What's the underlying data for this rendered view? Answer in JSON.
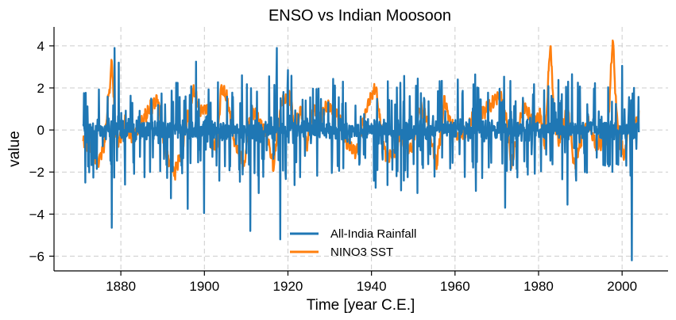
{
  "chart_data": {
    "type": "line",
    "title": "ENSO vs Indian Moosoon",
    "xlabel": "Time [year C.E.]",
    "ylabel": "value",
    "xlim": [
      1864,
      2011
    ],
    "ylim": [
      -6.7,
      4.9
    ],
    "x_ticks": [
      1880,
      1900,
      1920,
      1940,
      1960,
      1980,
      2000
    ],
    "y_ticks": [
      4,
      2,
      0,
      -2,
      -4,
      -6
    ],
    "x_tick_labels": [
      "1880",
      "1900",
      "1920",
      "1940",
      "1960",
      "1980",
      "2000"
    ],
    "y_tick_labels": [
      "4",
      "2",
      "0",
      "−2",
      "−4",
      "−6"
    ],
    "grid": true,
    "legend_position": "lower-center",
    "series": [
      {
        "name": "All-India Rainfall",
        "color": "#1f77b4",
        "style": "monthly-spiky",
        "x_range": [
          1871,
          2004
        ],
        "points": [
          [
            1871.2,
            1.75
          ],
          [
            1871.5,
            -2.5
          ],
          [
            1877.8,
            -4.65
          ],
          [
            1878.5,
            3.9
          ],
          [
            1879.5,
            3.2
          ],
          [
            1881,
            -2.6
          ],
          [
            1887,
            -2.0
          ],
          [
            1892,
            -3.25
          ],
          [
            1896,
            -3.75
          ],
          [
            1898,
            3.25
          ],
          [
            1899.9,
            -3.95
          ],
          [
            1909,
            2.6
          ],
          [
            1911,
            -4.8
          ],
          [
            1913,
            -3.0
          ],
          [
            1917.3,
            3.9
          ],
          [
            1918.2,
            -5.2
          ],
          [
            1920,
            2.85
          ],
          [
            1941,
            -2.75
          ],
          [
            1951,
            -3.0
          ],
          [
            1965,
            -2.9
          ],
          [
            1972,
            -3.7
          ],
          [
            1986.9,
            -3.55
          ],
          [
            1988,
            2.65
          ],
          [
            2000,
            3.05
          ],
          [
            2001,
            -1.7
          ],
          [
            2002.3,
            -6.2
          ],
          [
            2002.8,
            2.0
          ],
          [
            2003.4,
            -0.9
          ]
        ]
      },
      {
        "name": "NINO3 SST",
        "color": "#ff7f0e",
        "style": "smooth",
        "x_range": [
          1871,
          2004
        ],
        "points": [
          [
            1871.0,
            -0.45
          ],
          [
            1873.0,
            -0.9
          ],
          [
            1874.5,
            -1.55
          ],
          [
            1876.0,
            -0.7
          ],
          [
            1877.4,
            2.3
          ],
          [
            1877.9,
            3.3
          ],
          [
            1878.6,
            0.0
          ],
          [
            1879.6,
            -0.6
          ],
          [
            1881.0,
            0.4
          ],
          [
            1882.5,
            -0.4
          ],
          [
            1884.0,
            0.0
          ],
          [
            1886.0,
            0.7
          ],
          [
            1888.8,
            1.5
          ],
          [
            1890.6,
            -1.0
          ],
          [
            1892.8,
            -2.1
          ],
          [
            1894.5,
            -1.0
          ],
          [
            1897.4,
            1.9
          ],
          [
            1899.0,
            0.9
          ],
          [
            1900.5,
            1.1
          ],
          [
            1901.5,
            -0.4
          ],
          [
            1903.0,
            -0.9
          ],
          [
            1904.0,
            2.0
          ],
          [
            1905.5,
            1.5
          ],
          [
            1907.0,
            -0.4
          ],
          [
            1909.5,
            -1.75
          ],
          [
            1911.3,
            1.05
          ],
          [
            1913.5,
            0.2
          ],
          [
            1915.0,
            -0.2
          ],
          [
            1916.5,
            -1.8
          ],
          [
            1918.5,
            1.4
          ],
          [
            1920.5,
            1.5
          ],
          [
            1921.5,
            0.2
          ],
          [
            1923.2,
            0.9
          ],
          [
            1924.5,
            -0.75
          ],
          [
            1926.0,
            1.1
          ],
          [
            1927.5,
            0.6
          ],
          [
            1929.5,
            1.2
          ],
          [
            1932.0,
            0.65
          ],
          [
            1934.0,
            -0.6
          ],
          [
            1936.3,
            -1.1
          ],
          [
            1938.0,
            0.4
          ],
          [
            1939.5,
            1.4
          ],
          [
            1941.0,
            2.05
          ],
          [
            1942.5,
            -0.15
          ],
          [
            1943.5,
            -1.3
          ],
          [
            1945.5,
            -1.15
          ],
          [
            1947.0,
            -0.2
          ],
          [
            1949.5,
            -1.0
          ],
          [
            1951.5,
            1.05
          ],
          [
            1953.0,
            0.7
          ],
          [
            1955.6,
            -1.65
          ],
          [
            1957.5,
            1.4
          ],
          [
            1959.0,
            0.3
          ],
          [
            1961.0,
            -0.4
          ],
          [
            1963.5,
            0.2
          ],
          [
            1965.5,
            1.15
          ],
          [
            1966.5,
            0.8
          ],
          [
            1969.0,
            1.3
          ],
          [
            1971.0,
            1.7
          ],
          [
            1972.4,
            0.4
          ],
          [
            1973.5,
            -1.65
          ],
          [
            1975.5,
            0.35
          ],
          [
            1976.5,
            1.2
          ],
          [
            1978.5,
            0.3
          ],
          [
            1980.5,
            0.65
          ],
          [
            1981.5,
            -0.7
          ],
          [
            1982.8,
            4.2
          ],
          [
            1983.8,
            0.3
          ],
          [
            1985.0,
            -0.55
          ],
          [
            1987.0,
            1.1
          ],
          [
            1988.5,
            -1.7
          ],
          [
            1990.5,
            -0.25
          ],
          [
            1992.0,
            0.4
          ],
          [
            1993.5,
            -0.7
          ],
          [
            1995.0,
            -0.6
          ],
          [
            1996.5,
            -0.35
          ],
          [
            1997.8,
            4.45
          ],
          [
            1998.6,
            0.9
          ],
          [
            1999.5,
            -0.65
          ],
          [
            2000.5,
            -1.3
          ],
          [
            2002.0,
            0.7
          ],
          [
            2003.0,
            0.3
          ],
          [
            2004.0,
            0.7
          ]
        ]
      }
    ]
  }
}
